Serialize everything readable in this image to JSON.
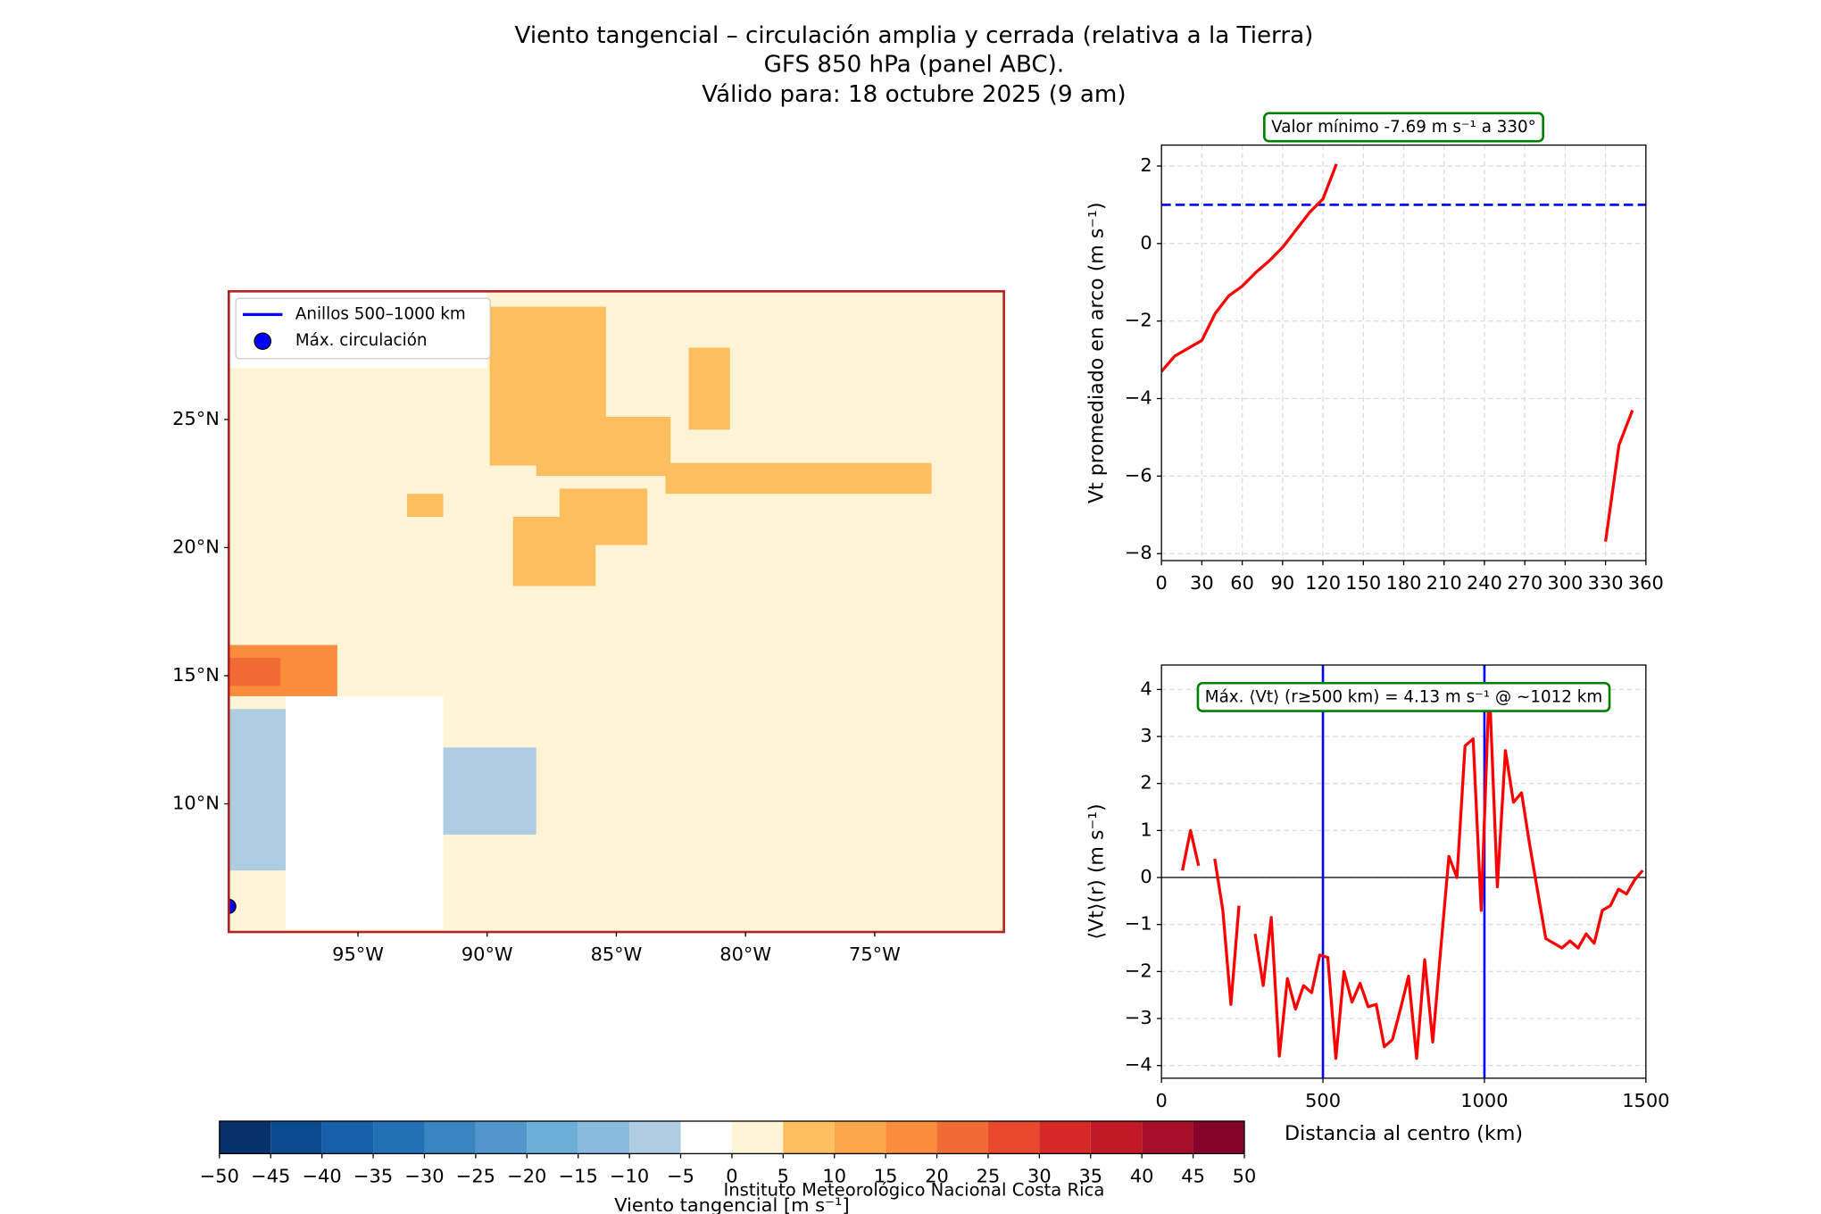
{
  "title_lines": [
    "Viento tangencial – circulación amplia y cerrada (relativa a la Tierra)",
    "GFS 850 hPa (panel ABC).",
    "Válido para: 18 octubre 2025 (9 am)"
  ],
  "footer": "Instituto Meteorológico Nacional Costa Rica",
  "chart_data": [
    {
      "type": "map",
      "xlim": [
        -100,
        -70
      ],
      "ylim": [
        5,
        30
      ],
      "xticks": [
        {
          "value": -95,
          "label": "95°W"
        },
        {
          "value": -90,
          "label": "90°W"
        },
        {
          "value": -85,
          "label": "85°W"
        },
        {
          "value": -80,
          "label": "80°W"
        },
        {
          "value": -75,
          "label": "75°W"
        }
      ],
      "yticks": [
        {
          "value": 10,
          "label": "10°N"
        },
        {
          "value": 15,
          "label": "15°N"
        },
        {
          "value": 20,
          "label": "20°N"
        },
        {
          "value": 25,
          "label": "25°N"
        }
      ],
      "frame_color": "#b22222",
      "legend": [
        {
          "name": "Anillos 500–1000 km",
          "color": "#0000ff",
          "marker": "line"
        },
        {
          "name": "Máx. circulación",
          "color": "#0000ff",
          "marker": "dot"
        }
      ],
      "max_point": {
        "lon": -100,
        "lat": 6
      },
      "patches": [
        {
          "lon": [
            -100,
            -70
          ],
          "lat": [
            5,
            30
          ],
          "value": 2.5
        },
        {
          "lon": [
            -100,
            -90
          ],
          "lat": [
            27,
            30
          ],
          "value": -2.5
        },
        {
          "lon": [
            -97.8,
            -91.7
          ],
          "lat": [
            5.1,
            14.2
          ],
          "value": -2.5
        },
        {
          "lon": [
            -89.9,
            -85.4
          ],
          "lat": [
            23.2,
            29.4
          ],
          "value": 7.5
        },
        {
          "lon": [
            -88.1,
            -82.9
          ],
          "lat": [
            22.8,
            25.1
          ],
          "value": 7.5
        },
        {
          "lon": [
            -87.2,
            -83.8
          ],
          "lat": [
            20.1,
            22.3
          ],
          "value": 7.5
        },
        {
          "lon": [
            -89,
            -85.8
          ],
          "lat": [
            18.5,
            21.2
          ],
          "value": 7.5
        },
        {
          "lon": [
            -82.2,
            -80.6
          ],
          "lat": [
            24.6,
            27.8
          ],
          "value": 7.5
        },
        {
          "lon": [
            -83.1,
            -72.8
          ],
          "lat": [
            22.1,
            23.3
          ],
          "value": 7.5
        },
        {
          "lon": [
            -93.1,
            -91.7
          ],
          "lat": [
            21.2,
            22.1
          ],
          "value": 7.5
        },
        {
          "lon": [
            -100,
            -95.8
          ],
          "lat": [
            14.2,
            16.2
          ],
          "value": 17.5
        },
        {
          "lon": [
            -100,
            -98
          ],
          "lat": [
            14.6,
            15.7
          ],
          "value": 22.5
        },
        {
          "lon": [
            -100,
            -97.8
          ],
          "lat": [
            7.4,
            13.7
          ],
          "value": -7.5
        },
        {
          "lon": [
            -91.7,
            -88.1
          ],
          "lat": [
            8.8,
            12.2
          ],
          "value": -7.5
        }
      ]
    },
    {
      "type": "line",
      "annotation": "Valor mínimo -7.69 m s⁻¹ a 330°",
      "ylabel": "Vt promediado en arco (m s⁻¹)",
      "xlim": [
        0,
        360
      ],
      "ylim": [
        -8.18,
        2.54
      ],
      "xticks": [
        0,
        30,
        60,
        90,
        120,
        150,
        180,
        210,
        240,
        270,
        300,
        330,
        360
      ],
      "yticks": [
        {
          "value": -8,
          "label": "−8"
        },
        {
          "value": -6,
          "label": "−6"
        },
        {
          "value": -4,
          "label": "−4"
        },
        {
          "value": -2,
          "label": "−2"
        },
        0,
        2
      ],
      "grid": true,
      "hlines": [
        {
          "value": 1,
          "color": "#0000ff",
          "style": "dashed"
        }
      ],
      "x": [
        0,
        10,
        20,
        30,
        40,
        50,
        60,
        70,
        80,
        90,
        100,
        110,
        120,
        130,
        140,
        150,
        160,
        170,
        180,
        190,
        200,
        210,
        220,
        230,
        240,
        250,
        260,
        270,
        280,
        290,
        300,
        310,
        320,
        330,
        340,
        350
      ],
      "series": [
        {
          "color": "#ff0000",
          "values": [
            -3.3,
            -2.9,
            -2.7,
            -2.5,
            -1.8,
            -1.35,
            -1.1,
            -0.75,
            -0.45,
            -0.1,
            0.35,
            0.8,
            1.15,
            2.05,
            null,
            null,
            null,
            null,
            null,
            null,
            null,
            null,
            null,
            null,
            null,
            null,
            null,
            null,
            null,
            null,
            null,
            null,
            null,
            -7.69,
            -5.2,
            -4.3
          ]
        }
      ]
    },
    {
      "type": "line",
      "annotation": "Máx. ⟨Vt⟩ (r≥500 km) = 4.13 m s⁻¹ @ ~1012 km",
      "xlabel": "Distancia al centro (km)",
      "ylabel": "⟨Vt⟩(r) (m s⁻¹)",
      "xlim": [
        0,
        1500
      ],
      "ylim": [
        -4.27,
        4.52
      ],
      "xticks": [
        0,
        500,
        1000,
        1500
      ],
      "yticks": [
        {
          "value": -4,
          "label": "−4"
        },
        {
          "value": -3,
          "label": "−3"
        },
        {
          "value": -2,
          "label": "−2"
        },
        {
          "value": -1,
          "label": "−1"
        },
        0,
        1,
        2,
        3,
        4
      ],
      "grid": true,
      "hlines": [
        {
          "value": 0,
          "color": "#000000",
          "style": "solid"
        }
      ],
      "vlines": [
        {
          "value": 500,
          "color": "#0000ff",
          "style": "solid"
        },
        {
          "value": 1000,
          "color": "#0000ff",
          "style": "solid"
        }
      ],
      "x": [
        65,
        90,
        115,
        140,
        165,
        190,
        215,
        240,
        265,
        290,
        315,
        340,
        365,
        390,
        415,
        440,
        465,
        490,
        515,
        540,
        565,
        590,
        615,
        640,
        665,
        690,
        715,
        740,
        765,
        790,
        815,
        840,
        865,
        890,
        915,
        940,
        965,
        990,
        1015,
        1040,
        1065,
        1090,
        1115,
        1140,
        1165,
        1190,
        1215,
        1240,
        1265,
        1290,
        1315,
        1340,
        1365,
        1390,
        1415,
        1440,
        1465,
        1490
      ],
      "series": [
        {
          "color": "#ff0000",
          "values": [
            0.15,
            1.0,
            0.25,
            null,
            0.4,
            -0.7,
            -2.7,
            -0.6,
            null,
            -1.2,
            -2.3,
            -0.85,
            -3.8,
            -2.15,
            -2.8,
            -2.3,
            -2.45,
            -1.65,
            -1.7,
            -3.85,
            -2.0,
            -2.65,
            -2.25,
            -2.75,
            -2.7,
            -3.6,
            -3.45,
            -2.8,
            -2.1,
            -3.85,
            -1.75,
            -3.5,
            -1.5,
            0.45,
            0.0,
            2.8,
            2.95,
            -0.7,
            4.13,
            -0.2,
            2.7,
            1.6,
            1.8,
            0.7,
            -0.3,
            -1.3,
            -1.4,
            -1.5,
            -1.35,
            -1.5,
            -1.2,
            -1.4,
            -0.7,
            -0.6,
            -0.25,
            -0.35,
            -0.05,
            0.15
          ]
        }
      ]
    },
    {
      "type": "colorbar",
      "label": "Viento tangencial [m s⁻¹]",
      "bounds": [
        -50,
        -45,
        -40,
        -35,
        -30,
        -25,
        -20,
        -15,
        -10,
        -5,
        0,
        5,
        10,
        15,
        20,
        25,
        30,
        35,
        40,
        45,
        50
      ],
      "colors": [
        "#08306b",
        "#0b4a8f",
        "#1560a8",
        "#2171b5",
        "#3a84c1",
        "#5296cc",
        "#6baed6",
        "#8abbdc",
        "#aecde3",
        "#ffffff",
        "#fff5d6",
        "#fdbf5e",
        "#fca74a",
        "#f98d3c",
        "#f16c35",
        "#e8482c",
        "#d62927",
        "#c11a24",
        "#a50f27",
        "#85052a"
      ],
      "xticks": [
        {
          "value": -50,
          "label": "−50"
        },
        {
          "value": -45,
          "label": "−45"
        },
        {
          "value": -40,
          "label": "−40"
        },
        {
          "value": -35,
          "label": "−35"
        },
        {
          "value": -30,
          "label": "−30"
        },
        {
          "value": -25,
          "label": "−25"
        },
        {
          "value": -20,
          "label": "−20"
        },
        {
          "value": -15,
          "label": "−15"
        },
        {
          "value": -10,
          "label": "−10"
        },
        {
          "value": -5,
          "label": "−5"
        },
        0,
        5,
        10,
        15,
        20,
        25,
        30,
        35,
        40,
        45,
        50
      ]
    }
  ]
}
